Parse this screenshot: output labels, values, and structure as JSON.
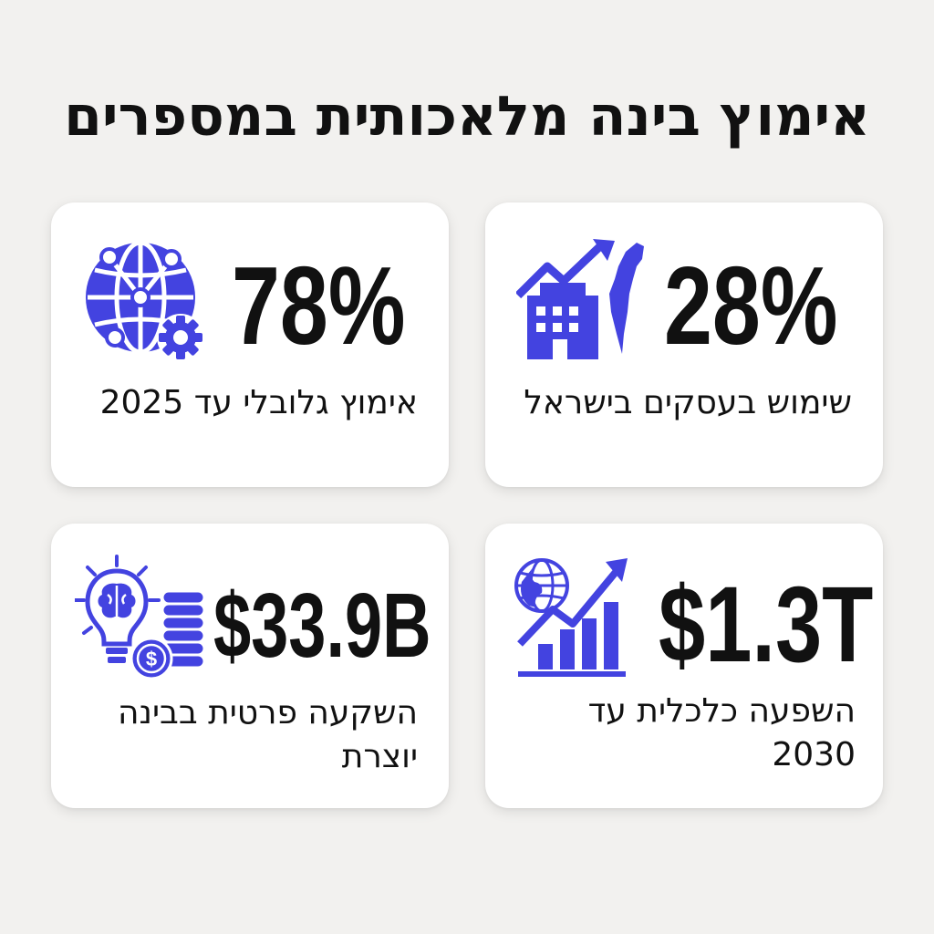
{
  "title": "אימוץ בינה מלאכותית במספרים",
  "accent_color": "#4343e0",
  "cards": [
    {
      "position": "top-left",
      "icon": "globe-network-gear-icon",
      "value": "78%",
      "label_lines": [
        "אימוץ גלובלי עד 2025"
      ]
    },
    {
      "position": "top-right",
      "icon": "building-growth-israel-map-icon",
      "value": "28%",
      "label_lines": [
        "שימוש בעסקים בישראל"
      ]
    },
    {
      "position": "bottom-left",
      "icon": "lightbulb-brain-coins-icon",
      "value": "$33.9B",
      "label_lines": [
        "השקעה פרטית בבינה",
        "יוצרת"
      ]
    },
    {
      "position": "bottom-right",
      "icon": "globe-bar-chart-growth-icon",
      "value": "$1.3T",
      "label_lines": [
        "השפעה כלכלית עד",
        "2030"
      ]
    }
  ]
}
